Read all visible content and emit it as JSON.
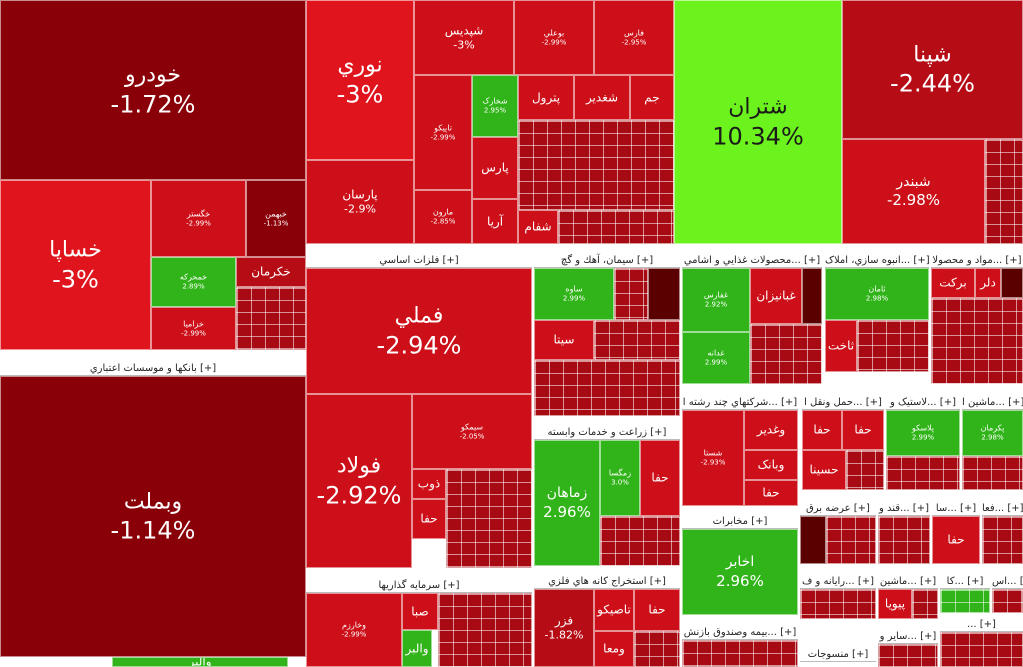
{
  "palette": {
    "deep": "#8a0008",
    "dark": "#a10a12",
    "mid": "#b50c15",
    "red": "#cc0f18",
    "bright": "#e0141c",
    "green": "#31b419",
    "lime": "#6cf21c",
    "brown": "#5a0000"
  },
  "tiles": [
    {
      "name": "خودرو",
      "pct": "-1.72%",
      "c": "deep",
      "s": "big"
    },
    {
      "name": "خساپا",
      "pct": "-3%",
      "c": "bright",
      "s": "big"
    },
    {
      "name": "خگستر",
      "pct": "-2.99%",
      "c": "red",
      "s": "xs"
    },
    {
      "name": "خمحرکه",
      "pct": "2.89%",
      "c": "green",
      "s": "xs"
    },
    {
      "name": "خکرمان",
      "pct": "",
      "c": "mid",
      "s": "sm"
    },
    {
      "name": "خبهمن",
      "pct": "-1.13%",
      "c": "deep",
      "s": "xs"
    },
    {
      "name": "خزامیا",
      "pct": "-2.99%",
      "c": "red",
      "s": "xs"
    },
    {
      "name": "وبملت",
      "pct": "-1.14%",
      "c": "deep",
      "s": "big"
    },
    {
      "name": "نوري",
      "pct": "-3%",
      "c": "bright",
      "s": "big"
    },
    {
      "name": "پارسان",
      "pct": "-2.9%",
      "c": "red",
      "s": "sm"
    },
    {
      "name": "شپديس",
      "pct": "-3%",
      "c": "red",
      "s": "sm"
    },
    {
      "name": "بوعلي",
      "pct": "-2.99%",
      "c": "red",
      "s": "xs"
    },
    {
      "name": "فارس",
      "pct": "-2.95%",
      "c": "red",
      "s": "xs"
    },
    {
      "name": "تاپيكو",
      "pct": "-2.99%",
      "c": "red",
      "s": "xs"
    },
    {
      "name": "شخارک",
      "pct": "2.95%",
      "c": "green",
      "s": "xs"
    },
    {
      "name": "پترول",
      "pct": "",
      "c": "red",
      "s": "sm"
    },
    {
      "name": "شغدير",
      "pct": "",
      "c": "red",
      "s": "sm"
    },
    {
      "name": "جم",
      "pct": "",
      "c": "red",
      "s": "sm"
    },
    {
      "name": "پارس",
      "pct": "",
      "c": "red",
      "s": "sm"
    },
    {
      "name": "آريا",
      "pct": "",
      "c": "red",
      "s": "sm"
    },
    {
      "name": "شفام",
      "pct": "",
      "c": "red",
      "s": "sm"
    },
    {
      "name": "مارون",
      "pct": "-2.85%",
      "c": "red",
      "s": "xs"
    },
    {
      "name": "شتران",
      "pct": "10.34%",
      "c": "lime",
      "s": "big",
      "dark": true
    },
    {
      "name": "شپنا",
      "pct": "-2.44%",
      "c": "mid",
      "s": "big"
    },
    {
      "name": "شبندر",
      "pct": "-2.98%",
      "c": "red",
      "s": "mid"
    },
    {
      "name": "فملي",
      "pct": "-2.94%",
      "c": "red",
      "s": "big"
    },
    {
      "name": "فولاد",
      "pct": "-2.92%",
      "c": "red",
      "s": "big"
    },
    {
      "name": "سيمكو",
      "pct": "-2.05%",
      "c": "red",
      "s": "xs"
    },
    {
      "name": "ذوب",
      "pct": "",
      "c": "red",
      "s": "sm"
    },
    {
      "name": "ساوه",
      "pct": "2.99%",
      "c": "green",
      "s": "xs"
    },
    {
      "name": "سيتا",
      "pct": "",
      "c": "red",
      "s": "sm"
    },
    {
      "name": "زماهان",
      "pct": "2.96%",
      "c": "green",
      "s": "mid"
    },
    {
      "name": "زمگسا",
      "pct": "3.0%",
      "c": "green",
      "s": "xs"
    },
    {
      "name": "غفارس",
      "pct": "2.92%",
      "c": "green",
      "s": "xs"
    },
    {
      "name": "غدانه",
      "pct": "2.99%",
      "c": "green",
      "s": "xs"
    },
    {
      "name": "غبانيزان",
      "pct": "",
      "c": "red",
      "s": "sm"
    },
    {
      "name": "ثامان",
      "pct": "2.98%",
      "c": "green",
      "s": "xs"
    },
    {
      "name": "ثاخت",
      "pct": "",
      "c": "red",
      "s": "sm"
    },
    {
      "name": "برکت",
      "pct": "",
      "c": "red",
      "s": "sm"
    },
    {
      "name": "دلر",
      "pct": "",
      "c": "red",
      "s": "sm"
    },
    {
      "name": "شستا",
      "pct": "-2.93%",
      "c": "red",
      "s": "xs"
    },
    {
      "name": "وغدير",
      "pct": "",
      "c": "red",
      "s": "sm"
    },
    {
      "name": "وبانک",
      "pct": "",
      "c": "red",
      "s": "sm"
    },
    {
      "name": "حسينا",
      "pct": "",
      "c": "red",
      "s": "sm"
    },
    {
      "name": "اخابر",
      "pct": "2.96%",
      "c": "green",
      "s": "mid"
    },
    {
      "name": "فزر",
      "pct": "-1.82%",
      "c": "mid",
      "s": "sm"
    },
    {
      "name": "تاصيكو",
      "pct": "",
      "c": "red",
      "s": "sm"
    },
    {
      "name": "ومعا",
      "pct": "",
      "c": "red",
      "s": "sm"
    },
    {
      "name": "صبا",
      "pct": "",
      "c": "red",
      "s": "sm"
    },
    {
      "name": "والبر",
      "pct": "",
      "c": "green",
      "s": "sm"
    },
    {
      "name": "وخارزم",
      "pct": "-2.99%",
      "c": "red",
      "s": "xs"
    },
    {
      "name": "پلاسکو",
      "pct": "2.99%",
      "c": "green",
      "s": "xs"
    },
    {
      "name": "پكرمان",
      "pct": "2.98%",
      "c": "green",
      "s": "xs"
    },
    {
      "name": "پيويا",
      "pct": "",
      "c": "red",
      "s": "sm"
    },
    {
      "name": "حفا",
      "pct": "",
      "c": "red",
      "s": "sm"
    }
  ],
  "groups": {
    "banks": "بانكها و موسسات اعتباري [+]",
    "metals": "فلزات اساسي [+]",
    "cement": "سيمان، آهك و گچ [+]",
    "food": "محصولات غذايي و اشامي... [+]",
    "realestate": "انبوه سازي، املاک... [+]",
    "chemicals": "مواد و محصولا... [+]",
    "agri": "زراعت و خدمات وابسته [+]",
    "multi": "شرکتهاي چند رشته ا... [+]",
    "transport": "حمل ونقل ا... [+]",
    "plastic": "لاستيک و... [+]",
    "machinery": "ماشين ا... [+]",
    "telecom": "مخابرات [+]",
    "mining": "استخراج كانه هاي فلزي [+]",
    "investment": "سرمايه گذاريها [+]",
    "insurance": "بيمه وصندوق بازنش... [+]",
    "textile": "منسوجات [+]",
    "power": "عرضه برق [+]",
    "sugar": "قند و... [+]",
    "computer": "رايانه و ف... [+]",
    "auto2": "ماشين... [+]",
    "others": "ساير و... [+]",
    "g1": "سا... [+]",
    "g2": "فعا... [+]",
    "g3": "كا... [+]",
    "g4": "اس... [+]",
    "g5": "... [+]"
  }
}
